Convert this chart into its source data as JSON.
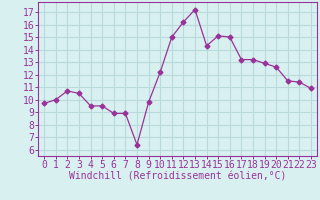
{
  "x": [
    0,
    1,
    2,
    3,
    4,
    5,
    6,
    7,
    8,
    9,
    10,
    11,
    12,
    13,
    14,
    15,
    16,
    17,
    18,
    19,
    20,
    21,
    22,
    23
  ],
  "y": [
    9.7,
    10.0,
    10.7,
    10.5,
    9.5,
    9.5,
    8.9,
    8.9,
    6.4,
    9.8,
    12.2,
    15.0,
    16.2,
    17.2,
    14.3,
    15.1,
    15.0,
    13.2,
    13.2,
    12.9,
    12.6,
    11.5,
    11.4,
    10.9
  ],
  "line_color": "#993399",
  "marker": "D",
  "marker_size": 2.5,
  "bg_color": "#d8f0f0",
  "grid_color": "#b8dada",
  "xlabel": "Windchill (Refroidissement éolien,°C)",
  "ylabel_ticks": [
    6,
    7,
    8,
    9,
    10,
    11,
    12,
    13,
    14,
    15,
    16,
    17
  ],
  "ylim": [
    5.5,
    17.8
  ],
  "xlim": [
    -0.5,
    23.5
  ],
  "xlabel_fontsize": 7,
  "tick_fontsize": 7,
  "tick_color": "#993399",
  "spine_color": "#993399"
}
